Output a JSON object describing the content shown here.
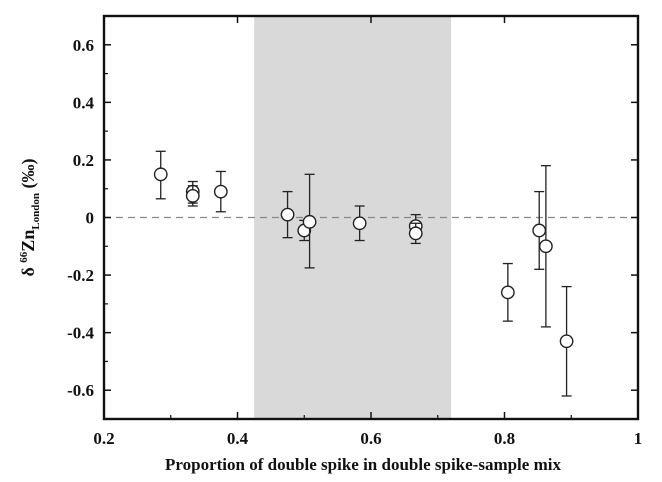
{
  "chart_data": {
    "type": "scatter",
    "xlabel": "Proportion of double spike in double spike-sample mix",
    "ylabel": {
      "prefix": "δ ",
      "sup": "66",
      "main": "Zn",
      "sub": "London",
      "suffix": " (‰)"
    },
    "xlim": [
      0.2,
      1.0
    ],
    "ylim": [
      -0.7,
      0.7
    ],
    "xticks": [
      0.2,
      0.4,
      0.6,
      0.8,
      1.0
    ],
    "xtick_labels": [
      "0.2",
      "0.4",
      "0.6",
      "0.8",
      "1"
    ],
    "yticks": [
      0.6,
      0.4,
      0.2,
      0,
      -0.2,
      -0.4,
      -0.6
    ],
    "ytick_labels": [
      "0.6",
      "0.4",
      "0.2",
      "0",
      "-0.2",
      "-0.4",
      "-0.6"
    ],
    "shaded_region": {
      "x": [
        0.425,
        0.72
      ],
      "color": "#d9d9d9"
    },
    "reference_line": {
      "y": 0,
      "style": "dashed",
      "color": "#888888"
    },
    "grid": false,
    "points": [
      {
        "x": 0.285,
        "y": 0.15,
        "yerr_low": 0.065,
        "yerr_high": 0.23
      },
      {
        "x": 0.333,
        "y": 0.09,
        "yerr_low": 0.05,
        "yerr_high": 0.125
      },
      {
        "x": 0.333,
        "y": 0.075,
        "yerr_low": 0.04,
        "yerr_high": 0.11
      },
      {
        "x": 0.375,
        "y": 0.09,
        "yerr_low": 0.02,
        "yerr_high": 0.16
      },
      {
        "x": 0.475,
        "y": 0.01,
        "yerr_low": -0.07,
        "yerr_high": 0.09
      },
      {
        "x": 0.5,
        "y": -0.045,
        "yerr_low": -0.08,
        "yerr_high": -0.01
      },
      {
        "x": 0.508,
        "y": -0.015,
        "yerr_low": -0.175,
        "yerr_high": 0.15
      },
      {
        "x": 0.583,
        "y": -0.02,
        "yerr_low": -0.08,
        "yerr_high": 0.04
      },
      {
        "x": 0.667,
        "y": -0.03,
        "yerr_low": -0.065,
        "yerr_high": 0.01
      },
      {
        "x": 0.667,
        "y": -0.055,
        "yerr_low": -0.09,
        "yerr_high": -0.02
      },
      {
        "x": 0.805,
        "y": -0.26,
        "yerr_low": -0.36,
        "yerr_high": -0.16
      },
      {
        "x": 0.852,
        "y": -0.045,
        "yerr_low": -0.18,
        "yerr_high": 0.09
      },
      {
        "x": 0.862,
        "y": -0.1,
        "yerr_low": -0.38,
        "yerr_high": 0.18
      },
      {
        "x": 0.893,
        "y": -0.43,
        "yerr_low": -0.62,
        "yerr_high": -0.24
      }
    ]
  }
}
